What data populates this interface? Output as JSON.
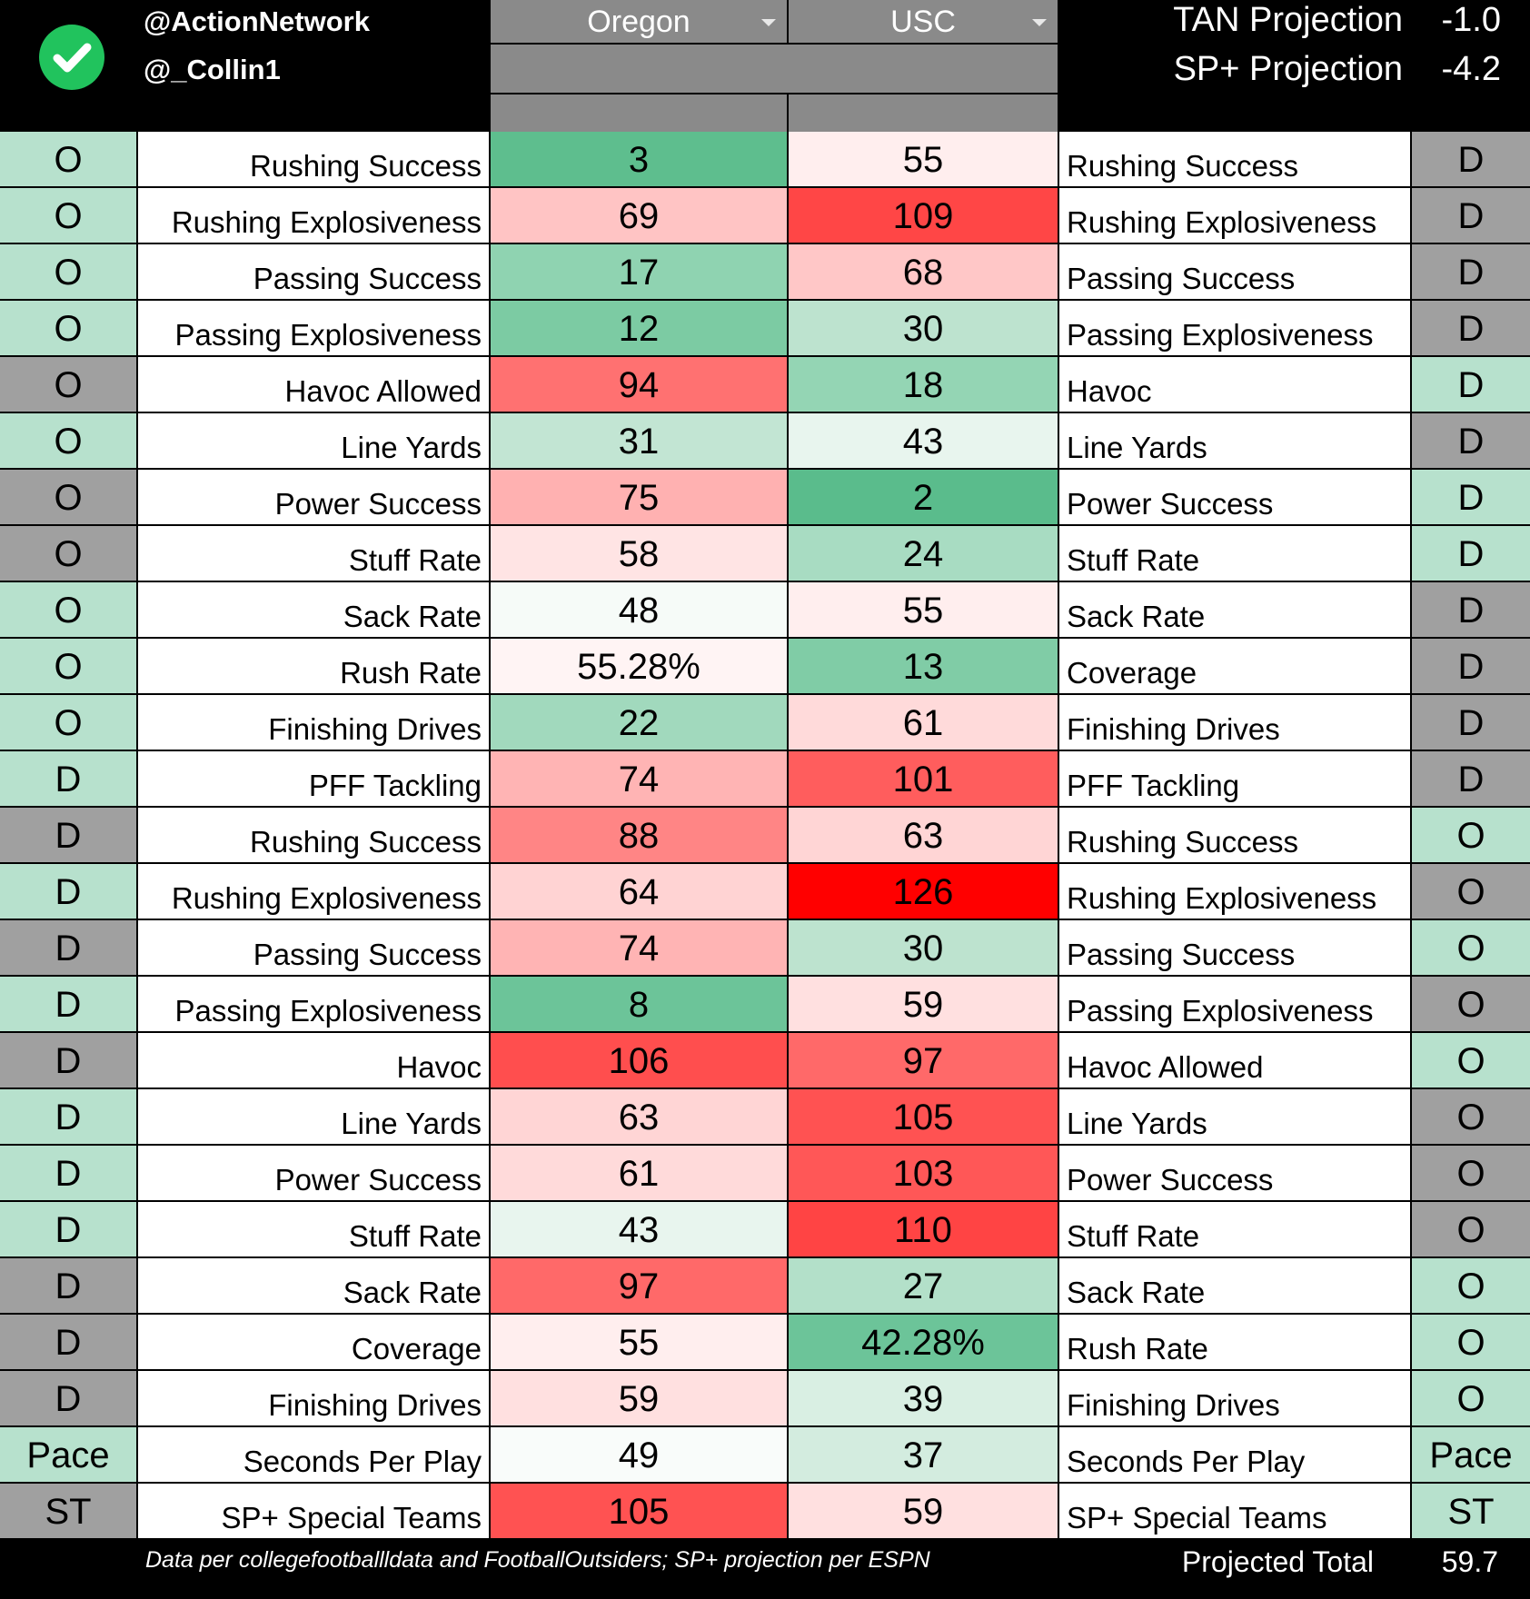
{
  "header": {
    "handles": [
      "@ActionNetwork",
      "@_Collin1"
    ],
    "team_left": "Oregon",
    "team_right": "USC",
    "projections": [
      {
        "label": "TAN Projection",
        "value": "-1.0"
      },
      {
        "label": "SP+ Projection",
        "value": "-4.2"
      }
    ]
  },
  "colors": {
    "light_green": "#b7e1cd",
    "gray": "#a0a0a0",
    "best_green": "#57bb8a",
    "worst_red": "#ff0000"
  },
  "rows": [
    {
      "ls": "O",
      "ll": "Rushing Success",
      "lv": "3",
      "rv": "55",
      "rl": "Rushing Success",
      "rs": "D",
      "lsc": "#b7e1cd",
      "rsc": "#a0a0a0",
      "lvc": "#5ebe8e",
      "rvc": "#ffeeee"
    },
    {
      "ls": "O",
      "ll": "Rushing Explosiveness",
      "lv": "69",
      "rv": "109",
      "rl": "Rushing Explosiveness",
      "rs": "D",
      "lsc": "#b7e1cd",
      "rsc": "#a0a0a0",
      "lvc": "#ffc4c4",
      "rvc": "#ff4646"
    },
    {
      "ls": "O",
      "ll": "Passing Success",
      "lv": "17",
      "rv": "68",
      "rl": "Passing Success",
      "rs": "D",
      "lsc": "#b7e1cd",
      "rsc": "#a0a0a0",
      "lvc": "#8fd3b1",
      "rvc": "#ffc7c7"
    },
    {
      "ls": "O",
      "ll": "Passing Explosiveness",
      "lv": "12",
      "rv": "30",
      "rl": "Passing Explosiveness",
      "rs": "D",
      "lsc": "#b7e1cd",
      "rsc": "#a0a0a0",
      "lvc": "#7ccba3",
      "rvc": "#bde3cf"
    },
    {
      "ls": "O",
      "ll": "Havoc Allowed",
      "lv": "94",
      "rv": "18",
      "rl": "Havoc",
      "rs": "D",
      "lsc": "#a0a0a0",
      "rsc": "#b7e1cd",
      "lvc": "#ff7171",
      "rvc": "#94d5b4"
    },
    {
      "ls": "O",
      "ll": "Line Yards",
      "lv": "31",
      "rv": "43",
      "rl": "Line Yards",
      "rs": "D",
      "lsc": "#b7e1cd",
      "rsc": "#a0a0a0",
      "lvc": "#c2e5d3",
      "rvc": "#e8f5ee"
    },
    {
      "ls": "O",
      "ll": "Power Success",
      "lv": "75",
      "rv": "2",
      "rl": "Power Success",
      "rs": "D",
      "lsc": "#a0a0a0",
      "rsc": "#b7e1cd",
      "lvc": "#ffb1b1",
      "rvc": "#5abc8c"
    },
    {
      "ls": "O",
      "ll": "Stuff Rate",
      "lv": "58",
      "rv": "24",
      "rl": "Stuff Rate",
      "rs": "D",
      "lsc": "#a0a0a0",
      "rsc": "#b7e1cd",
      "lvc": "#ffe4e4",
      "rvc": "#a8dcc2"
    },
    {
      "ls": "O",
      "ll": "Sack Rate",
      "lv": "48",
      "rv": "55",
      "rl": "Sack Rate",
      "rs": "D",
      "lsc": "#b7e1cd",
      "rsc": "#a0a0a0",
      "lvc": "#f6fbf8",
      "rvc": "#ffeeee"
    },
    {
      "ls": "O",
      "ll": "Rush Rate",
      "lv": "55.28%",
      "rv": "13",
      "rl": "Coverage",
      "rs": "D",
      "lsc": "#b7e1cd",
      "rsc": "#a0a0a0",
      "lvc": "#fff4f4",
      "rvc": "#80cca6"
    },
    {
      "ls": "O",
      "ll": "Finishing Drives",
      "lv": "22",
      "rv": "61",
      "rl": "Finishing Drives",
      "rs": "D",
      "lsc": "#b7e1cd",
      "rsc": "#a0a0a0",
      "lvc": "#a1d9bd",
      "rvc": "#ffdada"
    },
    {
      "ls": "D",
      "ll": "PFF Tackling",
      "lv": "74",
      "rv": "101",
      "rl": "PFF Tackling",
      "rs": "D",
      "lsc": "#b7e1cd",
      "rsc": "#a0a0a0",
      "lvc": "#ffb4b4",
      "rvc": "#ff5d5d"
    },
    {
      "ls": "D",
      "ll": "Rushing Success",
      "lv": "88",
      "rv": "63",
      "rl": "Rushing Success",
      "rs": "O",
      "lsc": "#a0a0a0",
      "rsc": "#b7e1cd",
      "lvc": "#ff8585",
      "rvc": "#ffd5d5"
    },
    {
      "ls": "D",
      "ll": "Rushing Explosiveness",
      "lv": "64",
      "rv": "126",
      "rl": "Rushing Explosiveness",
      "rs": "O",
      "lsc": "#b7e1cd",
      "rsc": "#a0a0a0",
      "lvc": "#ffd3d3",
      "rvc": "#ff0000"
    },
    {
      "ls": "D",
      "ll": "Passing Success",
      "lv": "74",
      "rv": "30",
      "rl": "Passing Success",
      "rs": "O",
      "lsc": "#a0a0a0",
      "rsc": "#b7e1cd",
      "lvc": "#ffb4b4",
      "rvc": "#bde3cf"
    },
    {
      "ls": "D",
      "ll": "Passing Explosiveness",
      "lv": "8",
      "rv": "59",
      "rl": "Passing Explosiveness",
      "rs": "O",
      "lsc": "#b7e1cd",
      "rsc": "#a0a0a0",
      "lvc": "#6cc499",
      "rvc": "#ffe0e0"
    },
    {
      "ls": "D",
      "ll": "Havoc",
      "lv": "106",
      "rv": "97",
      "rl": "Havoc Allowed",
      "rs": "O",
      "lsc": "#a0a0a0",
      "rsc": "#b7e1cd",
      "lvc": "#ff4e4e",
      "rvc": "#ff6969"
    },
    {
      "ls": "D",
      "ll": "Line Yards",
      "lv": "63",
      "rv": "105",
      "rl": "Line Yards",
      "rs": "O",
      "lsc": "#b7e1cd",
      "rsc": "#a0a0a0",
      "lvc": "#ffd5d5",
      "rvc": "#ff5252"
    },
    {
      "ls": "D",
      "ll": "Power Success",
      "lv": "61",
      "rv": "103",
      "rl": "Power Success",
      "rs": "O",
      "lsc": "#b7e1cd",
      "rsc": "#a0a0a0",
      "lvc": "#ffdada",
      "rvc": "#ff5757"
    },
    {
      "ls": "D",
      "ll": "Stuff Rate",
      "lv": "43",
      "rv": "110",
      "rl": "Stuff Rate",
      "rs": "O",
      "lsc": "#b7e1cd",
      "rsc": "#a0a0a0",
      "lvc": "#e8f5ee",
      "rvc": "#ff4444"
    },
    {
      "ls": "D",
      "ll": "Sack Rate",
      "lv": "97",
      "rv": "27",
      "rl": "Sack Rate",
      "rs": "O",
      "lsc": "#a0a0a0",
      "rsc": "#b7e1cd",
      "lvc": "#ff6969",
      "rvc": "#b3e0c9"
    },
    {
      "ls": "D",
      "ll": "Coverage",
      "lv": "55",
      "rv": "42.28%",
      "rl": "Rush Rate",
      "rs": "O",
      "lsc": "#a0a0a0",
      "rsc": "#b7e1cd",
      "lvc": "#ffeeee",
      "rvc": "#6cc499"
    },
    {
      "ls": "D",
      "ll": "Finishing Drives",
      "lv": "59",
      "rv": "39",
      "rl": "Finishing Drives",
      "rs": "O",
      "lsc": "#a0a0a0",
      "rsc": "#b7e1cd",
      "lvc": "#ffe0e0",
      "rvc": "#d9efe3"
    },
    {
      "ls": "Pace",
      "ll": "Seconds Per Play",
      "lv": "49",
      "rv": "37",
      "rl": "Seconds Per Play",
      "rs": "Pace",
      "lsc": "#b7e1cd",
      "rsc": "#b7e1cd",
      "lvc": "#f9fcfa",
      "rvc": "#d3ecdf"
    },
    {
      "ls": "ST",
      "ll": "SP+ Special Teams",
      "lv": "105",
      "rv": "59",
      "rl": "SP+ Special Teams",
      "rs": "ST",
      "lsc": "#a0a0a0",
      "rsc": "#b7e1cd",
      "lvc": "#ff5252",
      "rvc": "#ffe0e0"
    }
  ],
  "footer": {
    "note": "Data per collegefootballldata and FootballOutsiders; SP+ projection per ESPN",
    "total_label": "Projected Total",
    "total_value": "59.7"
  }
}
